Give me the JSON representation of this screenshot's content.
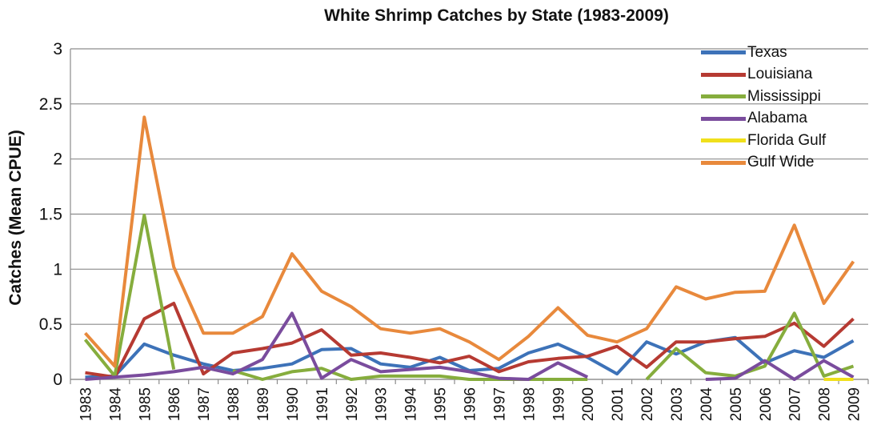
{
  "chart_data": {
    "type": "line",
    "title": "White Shrimp Catches by State (1983-2009)",
    "xlabel": "",
    "ylabel": "Catches (Mean CPUE)",
    "ylim": [
      0,
      3
    ],
    "yticks": [
      "0",
      "0.5",
      "1",
      "1.5",
      "2",
      "2.5",
      "3"
    ],
    "ytick_values": [
      0,
      0.5,
      1,
      1.5,
      2,
      2.5,
      3
    ],
    "grid": true,
    "legend_position": "top-right",
    "categories": [
      "1983",
      "1984",
      "1985",
      "1986",
      "1987",
      "1988",
      "1989",
      "1990",
      "1991",
      "1992",
      "1993",
      "1994",
      "1995",
      "1996",
      "1997",
      "1998",
      "1999",
      "2000",
      "2001",
      "2002",
      "2003",
      "2004",
      "2005",
      "2006",
      "2007",
      "2008",
      "2009"
    ],
    "series": [
      {
        "name": "Texas",
        "color": "#3d72b8",
        "values": [
          0.02,
          0.03,
          0.32,
          0.22,
          0.14,
          0.08,
          0.1,
          0.14,
          0.27,
          0.28,
          0.14,
          0.11,
          0.2,
          0.08,
          0.1,
          0.24,
          0.32,
          0.2,
          0.05,
          0.34,
          0.23,
          0.34,
          0.38,
          0.15,
          0.26,
          0.2,
          0.35
        ]
      },
      {
        "name": "Louisiana",
        "color": "#b63a32",
        "values": [
          0.06,
          0.02,
          0.55,
          0.69,
          0.05,
          0.24,
          0.28,
          0.33,
          0.45,
          0.22,
          0.24,
          0.2,
          0.15,
          0.21,
          0.07,
          0.16,
          0.19,
          0.21,
          0.3,
          0.11,
          0.34,
          0.34,
          0.37,
          0.39,
          0.51,
          0.3,
          0.55
        ]
      },
      {
        "name": "Mississippi",
        "color": "#86ad3d",
        "values": [
          0.36,
          0.03,
          1.49,
          0.09,
          null,
          0.08,
          0.0,
          0.07,
          0.1,
          0.0,
          0.03,
          0.03,
          0.03,
          0.0,
          0.0,
          0.0,
          0.0,
          0.0,
          null,
          0.0,
          0.28,
          0.06,
          0.03,
          0.12,
          0.6,
          0.03,
          0.12
        ]
      },
      {
        "name": "Alabama",
        "color": "#7a4c9d",
        "values": [
          0.0,
          0.02,
          0.04,
          0.07,
          0.11,
          0.05,
          0.18,
          0.6,
          0.01,
          0.18,
          0.07,
          0.09,
          0.11,
          0.07,
          0.01,
          0.0,
          0.15,
          0.02,
          null,
          null,
          null,
          0.0,
          0.01,
          0.17,
          0.0,
          0.17,
          0.02
        ]
      },
      {
        "name": "Florida Gulf",
        "color": "#f0e01c",
        "values": [
          null,
          null,
          null,
          null,
          null,
          null,
          null,
          null,
          null,
          null,
          null,
          null,
          null,
          null,
          null,
          null,
          null,
          null,
          null,
          null,
          null,
          null,
          null,
          null,
          null,
          0.0,
          0.0
        ]
      },
      {
        "name": "Gulf Wide",
        "color": "#e8893c",
        "values": [
          0.42,
          0.12,
          2.38,
          1.02,
          0.42,
          0.42,
          0.57,
          1.14,
          0.8,
          0.66,
          0.46,
          0.42,
          0.46,
          0.34,
          0.18,
          0.39,
          0.65,
          0.4,
          0.34,
          0.46,
          0.84,
          0.73,
          0.79,
          0.8,
          1.4,
          0.69,
          1.07
        ]
      }
    ]
  }
}
